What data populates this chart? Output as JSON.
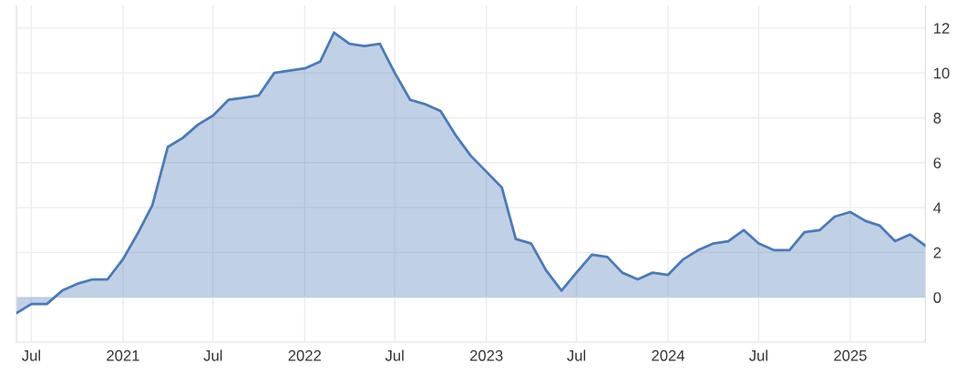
{
  "chart_data": {
    "type": "area",
    "x": [
      "2020-06",
      "2020-07",
      "2020-08",
      "2020-09",
      "2020-10",
      "2020-11",
      "2020-12",
      "2021-01",
      "2021-02",
      "2021-03",
      "2021-04",
      "2021-05",
      "2021-06",
      "2021-07",
      "2021-08",
      "2021-09",
      "2021-10",
      "2021-11",
      "2021-12",
      "2022-01",
      "2022-02",
      "2022-03",
      "2022-04",
      "2022-05",
      "2022-06",
      "2022-07",
      "2022-08",
      "2022-09",
      "2022-10",
      "2022-11",
      "2022-12",
      "2023-01",
      "2023-02",
      "2023-03",
      "2023-04",
      "2023-05",
      "2023-06",
      "2023-07",
      "2023-08",
      "2023-09",
      "2023-10",
      "2023-11",
      "2023-12",
      "2024-01",
      "2024-02",
      "2024-03",
      "2024-04",
      "2024-05",
      "2024-06",
      "2024-07",
      "2024-08",
      "2024-09",
      "2024-10",
      "2024-11",
      "2024-12",
      "2025-01",
      "2025-02",
      "2025-03",
      "2025-04",
      "2025-05",
      "2025-06"
    ],
    "series": [
      {
        "color": "#4a7ab8",
        "values": [
          -0.7,
          -0.3,
          -0.3,
          0.3,
          0.6,
          0.8,
          0.8,
          1.7,
          2.9,
          4.1,
          6.7,
          7.1,
          7.7,
          8.1,
          8.8,
          8.9,
          9.0,
          10.0,
          10.1,
          10.2,
          10.5,
          11.8,
          11.3,
          11.2,
          11.3,
          10.0,
          8.8,
          8.6,
          8.3,
          7.2,
          6.3,
          5.6,
          4.9,
          2.6,
          2.4,
          1.2,
          0.3,
          1.1,
          1.9,
          1.8,
          1.1,
          0.8,
          1.1,
          1.0,
          1.7,
          2.1,
          2.4,
          2.5,
          3.0,
          2.4,
          2.1,
          2.1,
          2.9,
          3.0,
          3.6,
          3.8,
          3.4,
          3.2,
          2.5,
          2.8,
          2.3
        ]
      }
    ],
    "xlim": [
      "2020-06",
      "2025-06"
    ],
    "xticks": [
      {
        "value": "2020-07",
        "label": "Jul"
      },
      {
        "value": "2021-01",
        "label": "2021"
      },
      {
        "value": "2021-07",
        "label": "Jul"
      },
      {
        "value": "2022-01",
        "label": "2022"
      },
      {
        "value": "2022-07",
        "label": "Jul"
      },
      {
        "value": "2023-01",
        "label": "2023"
      },
      {
        "value": "2023-07",
        "label": "Jul"
      },
      {
        "value": "2024-01",
        "label": "2024"
      },
      {
        "value": "2024-07",
        "label": "Jul"
      },
      {
        "value": "2025-01",
        "label": "2025"
      }
    ],
    "ylim": [
      -2,
      13
    ],
    "yticks": [
      0,
      2,
      4,
      6,
      8,
      10,
      12
    ],
    "grid": true
  }
}
